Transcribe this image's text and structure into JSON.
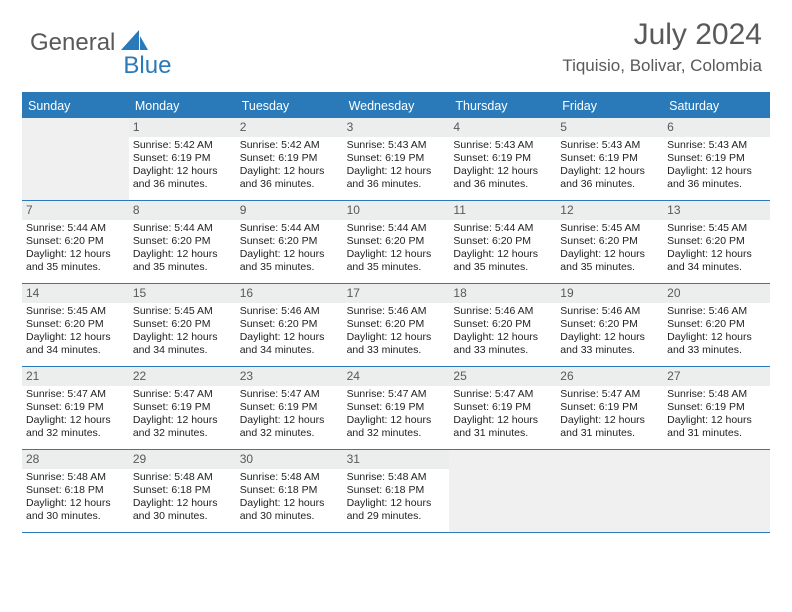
{
  "brand": {
    "part1": "General",
    "part2": "Blue"
  },
  "title": "July 2024",
  "location": "Tiquisio, Bolivar, Colombia",
  "colors": {
    "header_bg": "#2a7ab9",
    "accent": "#2a7ab9",
    "text_gray": "#58595b",
    "cell_num_bg": "#eceded",
    "empty_bg": "#f0f0f0"
  },
  "day_names": [
    "Sunday",
    "Monday",
    "Tuesday",
    "Wednesday",
    "Thursday",
    "Friday",
    "Saturday"
  ],
  "first_weekday": 1,
  "days": [
    {
      "n": 1,
      "sunrise": "5:42 AM",
      "sunset": "6:19 PM",
      "daylight": "12 hours and 36 minutes."
    },
    {
      "n": 2,
      "sunrise": "5:42 AM",
      "sunset": "6:19 PM",
      "daylight": "12 hours and 36 minutes."
    },
    {
      "n": 3,
      "sunrise": "5:43 AM",
      "sunset": "6:19 PM",
      "daylight": "12 hours and 36 minutes."
    },
    {
      "n": 4,
      "sunrise": "5:43 AM",
      "sunset": "6:19 PM",
      "daylight": "12 hours and 36 minutes."
    },
    {
      "n": 5,
      "sunrise": "5:43 AM",
      "sunset": "6:19 PM",
      "daylight": "12 hours and 36 minutes."
    },
    {
      "n": 6,
      "sunrise": "5:43 AM",
      "sunset": "6:19 PM",
      "daylight": "12 hours and 36 minutes."
    },
    {
      "n": 7,
      "sunrise": "5:44 AM",
      "sunset": "6:20 PM",
      "daylight": "12 hours and 35 minutes."
    },
    {
      "n": 8,
      "sunrise": "5:44 AM",
      "sunset": "6:20 PM",
      "daylight": "12 hours and 35 minutes."
    },
    {
      "n": 9,
      "sunrise": "5:44 AM",
      "sunset": "6:20 PM",
      "daylight": "12 hours and 35 minutes."
    },
    {
      "n": 10,
      "sunrise": "5:44 AM",
      "sunset": "6:20 PM",
      "daylight": "12 hours and 35 minutes."
    },
    {
      "n": 11,
      "sunrise": "5:44 AM",
      "sunset": "6:20 PM",
      "daylight": "12 hours and 35 minutes."
    },
    {
      "n": 12,
      "sunrise": "5:45 AM",
      "sunset": "6:20 PM",
      "daylight": "12 hours and 35 minutes."
    },
    {
      "n": 13,
      "sunrise": "5:45 AM",
      "sunset": "6:20 PM",
      "daylight": "12 hours and 34 minutes."
    },
    {
      "n": 14,
      "sunrise": "5:45 AM",
      "sunset": "6:20 PM",
      "daylight": "12 hours and 34 minutes."
    },
    {
      "n": 15,
      "sunrise": "5:45 AM",
      "sunset": "6:20 PM",
      "daylight": "12 hours and 34 minutes."
    },
    {
      "n": 16,
      "sunrise": "5:46 AM",
      "sunset": "6:20 PM",
      "daylight": "12 hours and 34 minutes."
    },
    {
      "n": 17,
      "sunrise": "5:46 AM",
      "sunset": "6:20 PM",
      "daylight": "12 hours and 33 minutes."
    },
    {
      "n": 18,
      "sunrise": "5:46 AM",
      "sunset": "6:20 PM",
      "daylight": "12 hours and 33 minutes."
    },
    {
      "n": 19,
      "sunrise": "5:46 AM",
      "sunset": "6:20 PM",
      "daylight": "12 hours and 33 minutes."
    },
    {
      "n": 20,
      "sunrise": "5:46 AM",
      "sunset": "6:20 PM",
      "daylight": "12 hours and 33 minutes."
    },
    {
      "n": 21,
      "sunrise": "5:47 AM",
      "sunset": "6:19 PM",
      "daylight": "12 hours and 32 minutes."
    },
    {
      "n": 22,
      "sunrise": "5:47 AM",
      "sunset": "6:19 PM",
      "daylight": "12 hours and 32 minutes."
    },
    {
      "n": 23,
      "sunrise": "5:47 AM",
      "sunset": "6:19 PM",
      "daylight": "12 hours and 32 minutes."
    },
    {
      "n": 24,
      "sunrise": "5:47 AM",
      "sunset": "6:19 PM",
      "daylight": "12 hours and 32 minutes."
    },
    {
      "n": 25,
      "sunrise": "5:47 AM",
      "sunset": "6:19 PM",
      "daylight": "12 hours and 31 minutes."
    },
    {
      "n": 26,
      "sunrise": "5:47 AM",
      "sunset": "6:19 PM",
      "daylight": "12 hours and 31 minutes."
    },
    {
      "n": 27,
      "sunrise": "5:48 AM",
      "sunset": "6:19 PM",
      "daylight": "12 hours and 31 minutes."
    },
    {
      "n": 28,
      "sunrise": "5:48 AM",
      "sunset": "6:18 PM",
      "daylight": "12 hours and 30 minutes."
    },
    {
      "n": 29,
      "sunrise": "5:48 AM",
      "sunset": "6:18 PM",
      "daylight": "12 hours and 30 minutes."
    },
    {
      "n": 30,
      "sunrise": "5:48 AM",
      "sunset": "6:18 PM",
      "daylight": "12 hours and 30 minutes."
    },
    {
      "n": 31,
      "sunrise": "5:48 AM",
      "sunset": "6:18 PM",
      "daylight": "12 hours and 29 minutes."
    }
  ],
  "labels": {
    "sunrise": "Sunrise:",
    "sunset": "Sunset:",
    "daylight": "Daylight:"
  }
}
